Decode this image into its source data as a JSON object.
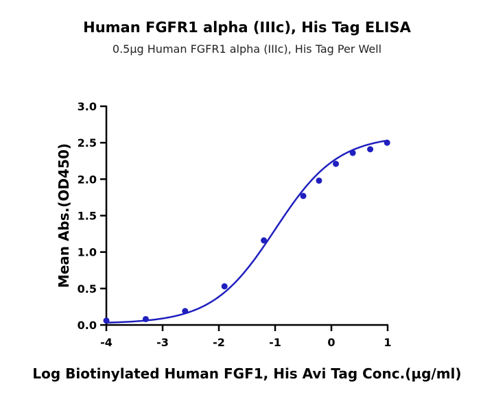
{
  "chart_data": {
    "type": "scatter",
    "title": "Human FGFR1 alpha (IIIc), His Tag ELISA",
    "subtitle": "0.5µg Human FGFR1 alpha (IIIc), His Tag Per Well",
    "xlabel": "Log Biotinylated Human FGF1, His Avi Tag Conc.(µg/ml)",
    "ylabel": "Mean Abs.(OD450)",
    "xlim": [
      -4,
      1
    ],
    "ylim": [
      0,
      3.0
    ],
    "x_ticks": [
      -4,
      -3,
      -2,
      -1,
      0,
      1
    ],
    "x_tick_labels": [
      "-4",
      "-3",
      "-2",
      "-1",
      "0",
      "1"
    ],
    "y_ticks": [
      0,
      0.5,
      1.0,
      1.5,
      2.0,
      2.5,
      3.0
    ],
    "y_tick_labels": [
      "0.0",
      "0.5",
      "1.0",
      "1.5",
      "2.0",
      "2.5",
      "3.0"
    ],
    "grid": false,
    "series": [
      {
        "color": "#1f1fbf",
        "points": [
          {
            "x": -4.0,
            "y": 0.06
          },
          {
            "x": -3.3,
            "y": 0.08
          },
          {
            "x": -2.6,
            "y": 0.19
          },
          {
            "x": -1.9,
            "y": 0.53
          },
          {
            "x": -1.2,
            "y": 1.16
          },
          {
            "x": -0.5,
            "y": 1.77
          },
          {
            "x": -0.22,
            "y": 1.98
          },
          {
            "x": 0.08,
            "y": 2.21
          },
          {
            "x": 0.38,
            "y": 2.36
          },
          {
            "x": 0.69,
            "y": 2.41
          },
          {
            "x": 0.99,
            "y": 2.5
          }
        ],
        "fit": {
          "bottom": 0.02,
          "top": 2.6,
          "logEC50": -1.0,
          "hill": 0.78
        }
      }
    ]
  }
}
